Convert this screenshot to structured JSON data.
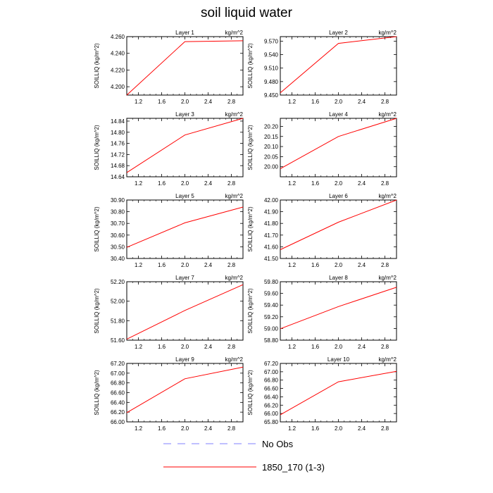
{
  "title": "soil liquid water",
  "colors": {
    "model": "#ff0000",
    "obs": "#8080ff",
    "axis": "#000000"
  },
  "legend": [
    {
      "label": "No Obs",
      "style": "dashed",
      "color": "#8080ff"
    },
    {
      "label": "1850_170 (1-3)",
      "style": "solid",
      "color": "#ff0000"
    }
  ],
  "chart_data": [
    {
      "type": "line",
      "title": "Layer 1",
      "units": "kg/m^2",
      "ylabel": "SOILLIQ  (kg/m^2)",
      "xlim": [
        1.0,
        3.0
      ],
      "xticks": [
        "1.2",
        "1.6",
        "2.0",
        "2.4",
        "2.8"
      ],
      "ylim": [
        4.19,
        4.26
      ],
      "yticks": [
        "4.200",
        "4.220",
        "4.240",
        "4.260"
      ],
      "series": [
        {
          "name": "1850_170 (1-3)",
          "x": [
            1,
            2,
            3
          ],
          "y": [
            4.19,
            4.254,
            4.255
          ]
        }
      ]
    },
    {
      "type": "line",
      "title": "Layer 2",
      "units": "kg/m^2",
      "ylabel": "SOILLIQ  (kg/m^2)",
      "xlim": [
        1.0,
        3.0
      ],
      "xticks": [
        "1.2",
        "1.6",
        "2.0",
        "2.4",
        "2.8"
      ],
      "ylim": [
        9.45,
        9.58
      ],
      "yticks": [
        "9.450",
        "9.480",
        "9.510",
        "9.540",
        "9.570"
      ],
      "series": [
        {
          "name": "1850_170 (1-3)",
          "x": [
            1,
            2,
            3
          ],
          "y": [
            9.455,
            9.565,
            9.58
          ]
        }
      ]
    },
    {
      "type": "line",
      "title": "Layer 3",
      "units": "kg/m^2",
      "ylabel": "SOILLIQ  (kg/m^2)",
      "xlim": [
        1.0,
        3.0
      ],
      "xticks": [
        "1.2",
        "1.6",
        "2.0",
        "2.4",
        "2.8"
      ],
      "ylim": [
        14.64,
        14.85
      ],
      "yticks": [
        "14.64",
        "14.68",
        "14.72",
        "14.76",
        "14.80",
        "14.84"
      ],
      "series": [
        {
          "name": "1850_170 (1-3)",
          "x": [
            1,
            2,
            3
          ],
          "y": [
            14.655,
            14.79,
            14.85
          ]
        }
      ]
    },
    {
      "type": "line",
      "title": "Layer 4",
      "units": "kg/m^2",
      "ylabel": "SOILLIQ  (kg/m^2)",
      "xlim": [
        1.0,
        3.0
      ],
      "xticks": [
        "1.2",
        "1.6",
        "2.0",
        "2.4",
        "2.8"
      ],
      "ylim": [
        19.95,
        20.24
      ],
      "yticks": [
        "20.00",
        "20.05",
        "20.10",
        "20.15",
        "20.20"
      ],
      "series": [
        {
          "name": "1850_170 (1-3)",
          "x": [
            1,
            2,
            3
          ],
          "y": [
            19.99,
            20.15,
            20.24
          ]
        }
      ]
    },
    {
      "type": "line",
      "title": "Layer 5",
      "units": "kg/m^2",
      "ylabel": "SOILLIQ  (kg/m^2)",
      "xlim": [
        1.0,
        3.0
      ],
      "xticks": [
        "1.2",
        "1.6",
        "2.0",
        "2.4",
        "2.8"
      ],
      "ylim": [
        30.4,
        30.9
      ],
      "yticks": [
        "30.40",
        "30.50",
        "30.60",
        "30.70",
        "30.80",
        "30.90"
      ],
      "series": [
        {
          "name": "1850_170 (1-3)",
          "x": [
            1,
            2,
            3
          ],
          "y": [
            30.495,
            30.705,
            30.84
          ]
        }
      ]
    },
    {
      "type": "line",
      "title": "Layer 6",
      "units": "kg/m^2",
      "ylabel": "SOILLIQ  (kg/m^2)",
      "xlim": [
        1.0,
        3.0
      ],
      "xticks": [
        "1.2",
        "1.6",
        "2.0",
        "2.4",
        "2.8"
      ],
      "ylim": [
        41.5,
        42.0
      ],
      "yticks": [
        "41.50",
        "41.60",
        "41.70",
        "41.80",
        "41.90",
        "42.00"
      ],
      "series": [
        {
          "name": "1850_170 (1-3)",
          "x": [
            1,
            2,
            3
          ],
          "y": [
            41.575,
            41.81,
            42.0
          ]
        }
      ]
    },
    {
      "type": "line",
      "title": "Layer 7",
      "units": "kg/m^2",
      "ylabel": "SOILLIQ  (kg/m^2)",
      "xlim": [
        1.0,
        3.0
      ],
      "xticks": [
        "1.2",
        "1.6",
        "2.0",
        "2.4",
        "2.8"
      ],
      "ylim": [
        51.6,
        52.2
      ],
      "yticks": [
        "51.60",
        "51.80",
        "52.00",
        "52.20"
      ],
      "series": [
        {
          "name": "1850_170 (1-3)",
          "x": [
            1,
            2,
            3
          ],
          "y": [
            51.61,
            51.905,
            52.17
          ]
        }
      ]
    },
    {
      "type": "line",
      "title": "Layer 8",
      "units": "kg/m^2",
      "ylabel": "SOILLIQ  (kg/m^2)",
      "xlim": [
        1.0,
        3.0
      ],
      "xticks": [
        "1.2",
        "1.6",
        "2.0",
        "2.4",
        "2.8"
      ],
      "ylim": [
        58.8,
        59.8
      ],
      "yticks": [
        "58.80",
        "59.00",
        "59.20",
        "59.40",
        "59.60",
        "59.80"
      ],
      "series": [
        {
          "name": "1850_170 (1-3)",
          "x": [
            1,
            2,
            3
          ],
          "y": [
            58.995,
            59.375,
            59.705
          ]
        }
      ]
    },
    {
      "type": "line",
      "title": "Layer 9",
      "units": "kg/m^2",
      "ylabel": "SOILLIQ  (kg/m^2)",
      "xlim": [
        1.0,
        3.0
      ],
      "xticks": [
        "1.2",
        "1.6",
        "2.0",
        "2.4",
        "2.8"
      ],
      "ylim": [
        66.0,
        67.2
      ],
      "yticks": [
        "66.00",
        "66.20",
        "66.40",
        "66.60",
        "66.80",
        "67.00",
        "67.20"
      ],
      "series": [
        {
          "name": "1850_170 (1-3)",
          "x": [
            1,
            2,
            3
          ],
          "y": [
            66.19,
            66.885,
            67.125
          ]
        }
      ]
    },
    {
      "type": "line",
      "title": "Layer 10",
      "units": "kg/m^2",
      "ylabel": "SOILLIQ  (kg/m^2)",
      "xlim": [
        1.0,
        3.0
      ],
      "xticks": [
        "1.2",
        "1.6",
        "2.0",
        "2.4",
        "2.8"
      ],
      "ylim": [
        65.8,
        67.2
      ],
      "yticks": [
        "65.80",
        "66.00",
        "66.20",
        "66.40",
        "66.60",
        "66.80",
        "67.00",
        "67.20"
      ],
      "series": [
        {
          "name": "1850_170 (1-3)",
          "x": [
            1,
            2,
            3
          ],
          "y": [
            65.97,
            66.76,
            67.01
          ]
        }
      ]
    }
  ]
}
